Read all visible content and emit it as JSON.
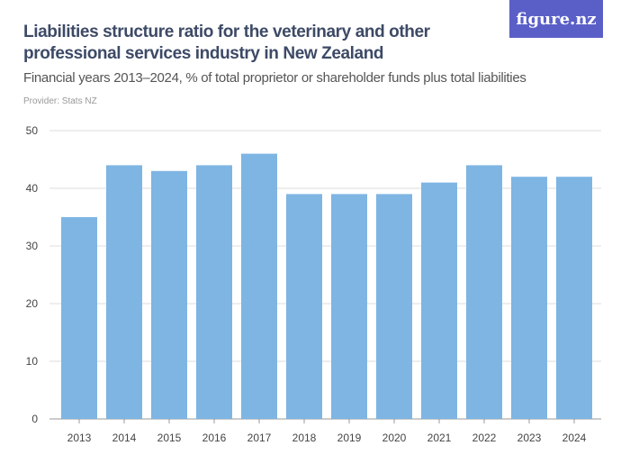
{
  "header": {
    "title": "Liabilities structure ratio for the veterinary and other professional services industry in New Zealand",
    "subtitle": "Financial years 2013–2024, % of total proprietor or shareholder funds plus total liabilities",
    "provider": "Provider: Stats NZ",
    "logo": "figure.nz"
  },
  "chart_data": {
    "type": "bar",
    "title": "Liabilities structure ratio for the veterinary and other professional services industry in New Zealand",
    "subtitle": "Financial years 2013–2024, % of total proprietor or shareholder funds plus total liabilities",
    "categories": [
      "2013",
      "2014",
      "2015",
      "2016",
      "2017",
      "2018",
      "2019",
      "2020",
      "2021",
      "2022",
      "2023",
      "2024"
    ],
    "values": [
      35,
      44,
      43,
      44,
      46,
      39,
      39,
      39,
      41,
      44,
      42,
      42
    ],
    "ylim": [
      0,
      50
    ],
    "yticks": [
      0,
      10,
      20,
      30,
      40,
      50
    ],
    "grid": true,
    "bar_color": "#7eb5e3"
  }
}
